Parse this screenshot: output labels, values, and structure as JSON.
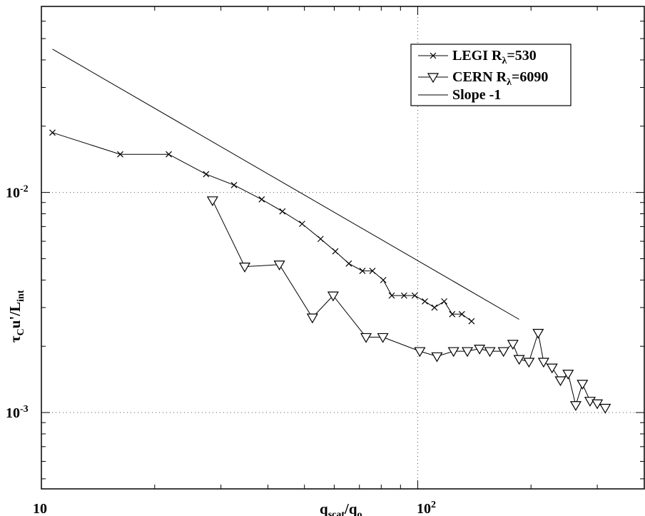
{
  "chart_data": {
    "type": "line",
    "x_scale": "log",
    "y_scale": "log",
    "xlim": [
      10,
      400
    ],
    "ylim": [
      0.00045,
      0.07
    ],
    "grid": "dotted at major decades",
    "legend_position": "top-right",
    "xlabel": {
      "base": "q",
      "sub1": "scat",
      "mid": "/q",
      "sub2": "o"
    },
    "ylabel": {
      "base": "τ",
      "sub1": "C",
      "mid": "u'/L",
      "sub2": "int"
    },
    "x_ticks": [
      {
        "base": "10",
        "exp": ""
      },
      {
        "base": "10",
        "exp": "2"
      }
    ],
    "y_ticks": [
      {
        "base": "10",
        "exp": "-2"
      },
      {
        "base": "10",
        "exp": "-3"
      }
    ],
    "series": [
      {
        "name": "LEGI R",
        "name_sub": "λ",
        "name_tail": "=530",
        "marker": "x",
        "x": [
          10.7,
          16.2,
          21.8,
          27.4,
          32.5,
          38.5,
          43.7,
          49.3,
          55.2,
          60.4,
          65.6,
          71.3,
          75.8,
          81.0,
          85.3,
          92.0,
          98.2,
          104.5,
          110.8,
          117.6,
          123.5,
          131.0,
          139.0
        ],
        "y": [
          0.0187,
          0.0149,
          0.0149,
          0.0121,
          0.0108,
          0.0093,
          0.0082,
          0.0072,
          0.00615,
          0.0054,
          0.00475,
          0.0044,
          0.0044,
          0.004,
          0.0034,
          0.0034,
          0.0034,
          0.0032,
          0.003,
          0.0032,
          0.0028,
          0.0028,
          0.0026
        ]
      },
      {
        "name": "CERN R",
        "name_sub": "λ",
        "name_tail": "=6090",
        "marker": "triangle-down",
        "x": [
          28.5,
          34.7,
          42.9,
          52.5,
          59.6,
          72.9,
          80.8,
          101.3,
          112.5,
          124.5,
          135.5,
          146.0,
          155.5,
          169.0,
          179.0,
          186.0,
          197.5,
          209.0,
          216.0,
          227.5,
          239.5,
          251.0,
          263.0,
          274.0,
          287.0,
          300.0,
          315.0
        ],
        "y": [
          0.0092,
          0.0046,
          0.0047,
          0.0027,
          0.0034,
          0.0022,
          0.0022,
          0.0019,
          0.0018,
          0.0019,
          0.0019,
          0.00195,
          0.0019,
          0.0019,
          0.00205,
          0.00175,
          0.0017,
          0.0023,
          0.0017,
          0.0016,
          0.0014,
          0.0015,
          0.00108,
          0.00135,
          0.00113,
          0.0011,
          0.00105
        ]
      },
      {
        "name": "Slope -1",
        "marker": "none",
        "x": [
          10.7,
          186.0
        ],
        "y": [
          0.0448,
          0.00265
        ]
      }
    ]
  }
}
